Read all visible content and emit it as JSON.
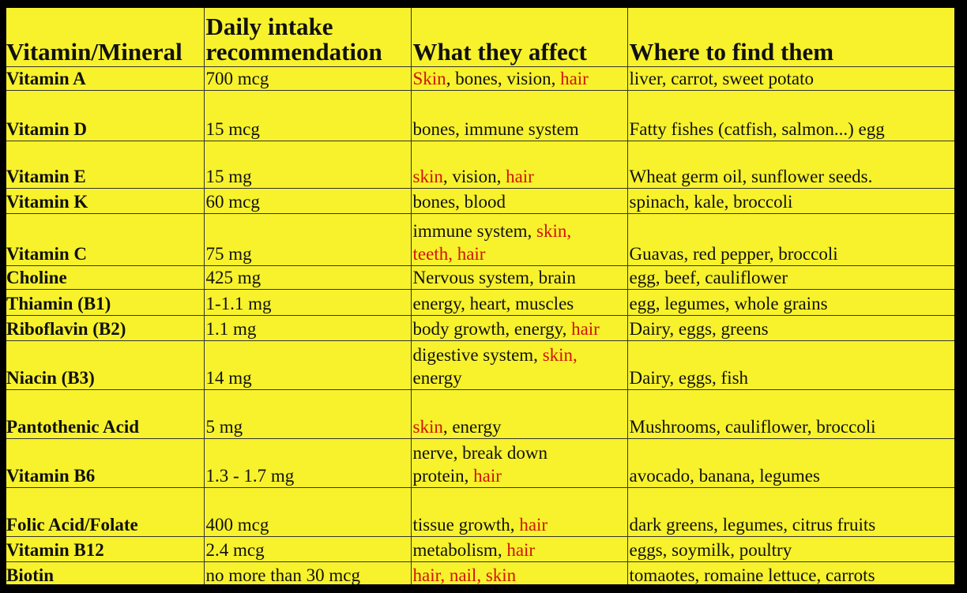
{
  "table": {
    "headers": [
      "Vitamin/Mineral",
      [
        "Daily intake",
        "recommendation"
      ],
      "What they affect",
      "Where to find them"
    ],
    "rows": [
      {
        "name": "Vitamin A",
        "intake": "700 mcg",
        "affect": [
          [
            {
              "t": "Skin",
              "r": true
            },
            {
              "t": ", bones, vision, "
            },
            {
              "t": "hair",
              "r": true
            }
          ]
        ],
        "sources": "liver, carrot, sweet potato"
      },
      {
        "name": "Vitamin D",
        "intake": "15 mcg",
        "affect": [
          [
            {
              "t": "bones, immune system"
            }
          ]
        ],
        "sources": "Fatty fishes (catfish, salmon...) egg"
      },
      {
        "name": "Vitamin E",
        "intake": "15 mg",
        "affect": [
          [
            {
              "t": "skin",
              "r": true
            },
            {
              "t": ", vision, "
            },
            {
              "t": "hair",
              "r": true
            }
          ]
        ],
        "sources": "Wheat germ oil, sunflower seeds."
      },
      {
        "name": "Vitamin K",
        "intake": "60 mcg",
        "affect": [
          [
            {
              "t": "bones,  blood"
            }
          ]
        ],
        "sources": "spinach, kale, broccoli"
      },
      {
        "name": "Vitamin C",
        "intake": "75 mg",
        "affect": [
          [
            {
              "t": "immune system, "
            },
            {
              "t": "skin,",
              "r": true
            }
          ],
          [
            {
              "t": "teeth, hair",
              "r": true
            }
          ]
        ],
        "sources": "Guavas, red pepper, broccoli"
      },
      {
        "name": "Choline",
        "intake": "425 mg",
        "affect": [
          [
            {
              "t": "Nervous system, brain"
            }
          ]
        ],
        "sources": "egg, beef, cauliflower"
      },
      {
        "name": "Thiamin (B1)",
        "intake": "1-1.1 mg",
        "affect": [
          [
            {
              "t": "energy, heart, muscles"
            }
          ]
        ],
        "sources": "egg, legumes, whole grains"
      },
      {
        "name": "Riboflavin (B2)",
        "intake": "1.1 mg",
        "affect": [
          [
            {
              "t": "body growth, energy, "
            },
            {
              "t": "hair",
              "r": true
            }
          ]
        ],
        "sources": "Dairy, eggs, greens"
      },
      {
        "name": "Niacin (B3)",
        "intake": "14 mg",
        "affect": [
          [
            {
              "t": "digestive system, "
            },
            {
              "t": "skin,",
              "r": true
            }
          ],
          [
            {
              "t": "energy"
            }
          ]
        ],
        "sources": "Dairy, eggs, fish"
      },
      {
        "name": "Pantothenic Acid",
        "intake": "5 mg",
        "affect": [
          [
            {
              "t": "skin",
              "r": true
            },
            {
              "t": ", energy"
            }
          ]
        ],
        "sources": "Mushrooms, cauliflower, broccoli"
      },
      {
        "name": "Vitamin B6",
        "intake": "1.3 - 1.7 mg",
        "affect": [
          [
            {
              "t": "nerve, break down"
            }
          ],
          [
            {
              "t": "protein, "
            },
            {
              "t": "hair",
              "r": true
            }
          ]
        ],
        "sources": "avocado, banana, legumes"
      },
      {
        "name": "Folic Acid/Folate",
        "intake": "400 mcg",
        "affect": [
          [
            {
              "t": "tissue growth, "
            },
            {
              "t": "hair",
              "r": true
            }
          ]
        ],
        "sources": "dark greens, legumes, citrus fruits"
      },
      {
        "name": "Vitamin B12",
        "intake": "2.4 mcg",
        "affect": [
          [
            {
              "t": "metabolism, "
            },
            {
              "t": "hair",
              "r": true
            }
          ]
        ],
        "sources": "eggs, soymilk, poultry"
      },
      {
        "name": "Biotin",
        "intake": "no more than 30 mcg",
        "affect": [
          [
            {
              "t": "hair, nail, skin",
              "r": true
            }
          ]
        ],
        "sources": "tomaotes, romaine lettuce, carrots"
      }
    ]
  },
  "colors": {
    "background": "#f7f22c",
    "highlight": "#d0140a",
    "text": "#111111",
    "frame": "#000000"
  }
}
